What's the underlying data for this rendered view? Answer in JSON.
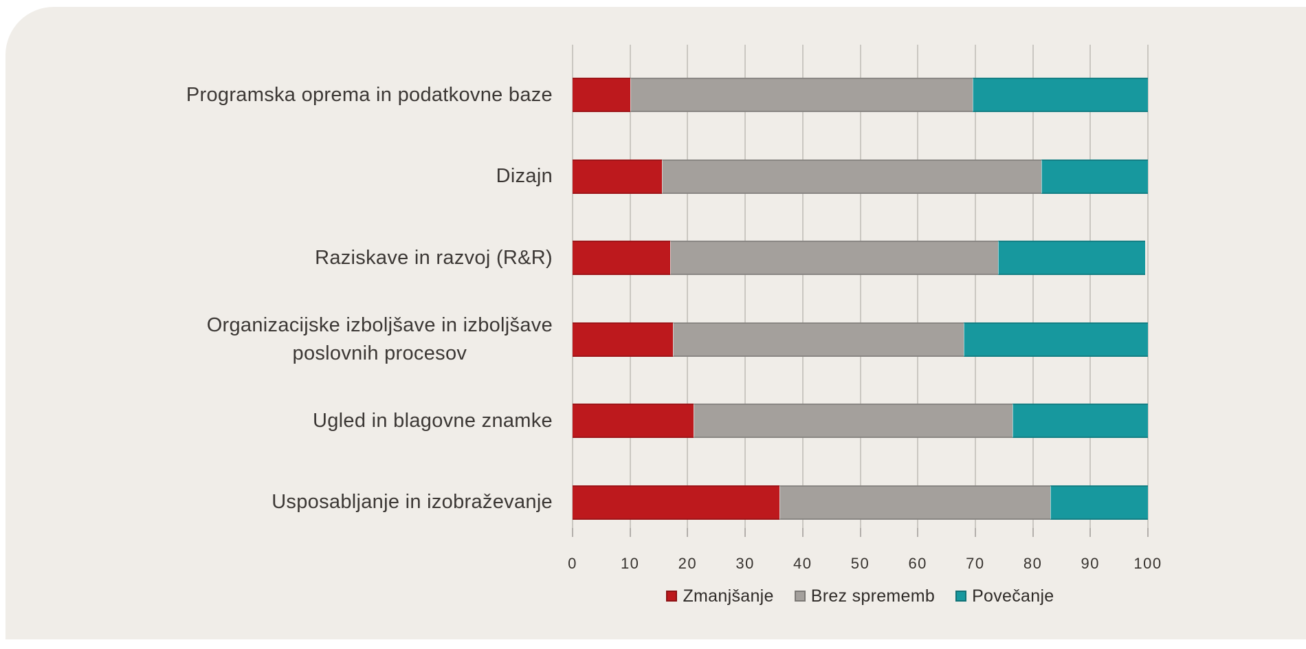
{
  "colors": {
    "page_background": "#ffffff",
    "card_background": "#f0ede8",
    "grid_line": "#aca79f",
    "axis_text": "#36322e",
    "label_text": "#3b3734",
    "decrease": "#bd191d",
    "no_change": "#a4a09c",
    "increase": "#17989e"
  },
  "chart_data": {
    "type": "bar",
    "orientation": "horizontal",
    "stacked": true,
    "title": "",
    "xlabel": "",
    "ylabel": "",
    "grid": true,
    "legend_position": "bottom",
    "categories": [
      "Programska oprema in podatkovne baze",
      "Dizajn",
      "Raziskave in razvoj (R&R)",
      "Organizacijske izboljšave in izboljšave\nposlovnih procesov",
      "Ugled in blagovne znamke",
      "Usposabljanje in izobraževanje"
    ],
    "series": [
      {
        "name": "Zmanjšanje",
        "color": "#bd191d",
        "values": [
          10,
          15.5,
          17,
          17.5,
          21,
          36
        ]
      },
      {
        "name": "Brez sprememb",
        "color": "#a4a09c",
        "values": [
          59.5,
          66,
          57,
          50.5,
          55.5,
          47
        ]
      },
      {
        "name": "Povečanje",
        "color": "#17989e",
        "values": [
          30.5,
          18.5,
          25.5,
          32,
          23.5,
          17
        ]
      }
    ],
    "x_axis": {
      "min": 0,
      "max": 100,
      "ticks": [
        0,
        10,
        20,
        30,
        40,
        50,
        60,
        70,
        80,
        90,
        100
      ]
    }
  }
}
